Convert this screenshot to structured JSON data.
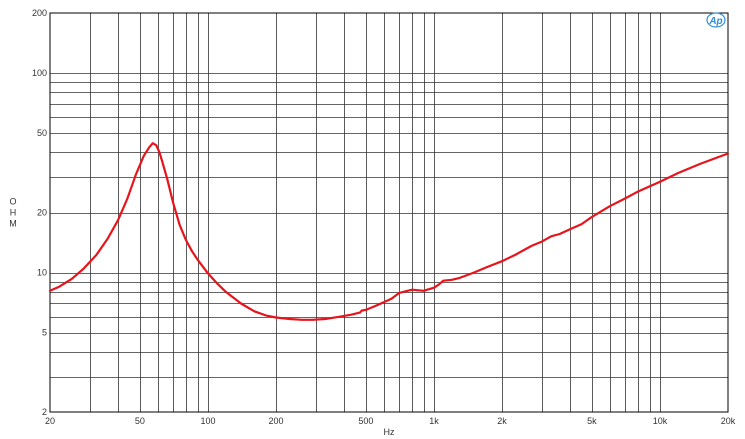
{
  "chart_data": {
    "type": "line",
    "xlabel": "Hz",
    "ylabel": "OHM",
    "xscale": "log",
    "yscale": "log",
    "xlim": [
      20,
      20000
    ],
    "ylim": [
      2,
      200
    ],
    "grid": true,
    "colors": {
      "series": "#e8141b",
      "grid": "#333333",
      "frame": "#000000",
      "logo": "#2f8fd6"
    },
    "logo": "Ap",
    "x_ticks": [
      {
        "value": 20,
        "label": "20"
      },
      {
        "value": 50,
        "label": "50"
      },
      {
        "value": 100,
        "label": "100"
      },
      {
        "value": 200,
        "label": "200"
      },
      {
        "value": 500,
        "label": "500"
      },
      {
        "value": 1000,
        "label": "1k"
      },
      {
        "value": 2000,
        "label": "2k"
      },
      {
        "value": 5000,
        "label": "5k"
      },
      {
        "value": 10000,
        "label": "10k"
      },
      {
        "value": 20000,
        "label": "20k"
      }
    ],
    "y_ticks": [
      {
        "value": 2,
        "label": "2"
      },
      {
        "value": 5,
        "label": "5"
      },
      {
        "value": 10,
        "label": "10"
      },
      {
        "value": 20,
        "label": "20"
      },
      {
        "value": 50,
        "label": "50"
      },
      {
        "value": 100,
        "label": "100"
      },
      {
        "value": 200,
        "label": "200"
      }
    ],
    "series": [
      {
        "x": [
          20,
          22,
          25,
          28,
          32,
          36,
          40,
          44,
          48,
          52,
          55,
          57,
          59,
          61,
          63,
          66,
          70,
          75,
          80,
          85,
          90,
          100,
          110,
          120,
          140,
          160,
          180,
          200,
          230,
          260,
          290,
          330,
          380,
          430,
          470,
          480,
          500,
          550,
          600,
          650,
          700,
          730,
          800,
          900,
          1000,
          1050,
          1100,
          1200,
          1300,
          1500,
          1700,
          2000,
          2300,
          2700,
          3000,
          3300,
          3600,
          4000,
          4500,
          5000,
          6000,
          7000,
          8000,
          10000,
          12000,
          15000,
          20000
        ],
        "y": [
          8.1,
          8.5,
          9.3,
          10.4,
          12.2,
          14.8,
          18.3,
          23.5,
          31,
          38.5,
          42.5,
          44.5,
          43.5,
          40,
          35.5,
          29.5,
          22.5,
          17.3,
          14.5,
          12.8,
          11.6,
          9.9,
          8.8,
          8,
          7,
          6.4,
          6.1,
          5.95,
          5.85,
          5.8,
          5.8,
          5.85,
          6,
          6.15,
          6.3,
          6.45,
          6.5,
          6.8,
          7.1,
          7.4,
          7.9,
          8.0,
          8.2,
          8.1,
          8.4,
          8.7,
          9.1,
          9.2,
          9.4,
          10.0,
          10.6,
          11.4,
          12.3,
          13.6,
          14.3,
          15.2,
          15.6,
          16.5,
          17.5,
          19.0,
          21.5,
          23.5,
          25.5,
          28.5,
          31.5,
          35.0,
          39.5
        ]
      }
    ]
  }
}
